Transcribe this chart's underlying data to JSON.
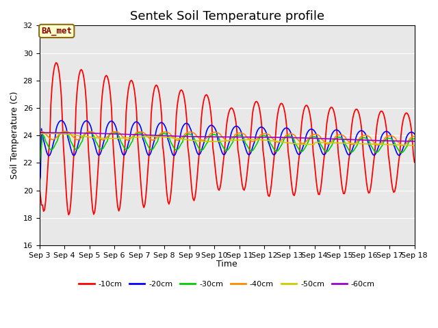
{
  "title": "Sentek Soil Temperature profile",
  "ylabel": "Soil Temperature (C)",
  "xlabel": "Time",
  "ylim": [
    16,
    32
  ],
  "xlim": [
    0,
    15
  ],
  "annotation": "BA_met",
  "legend_labels": [
    "-10cm",
    "-20cm",
    "-30cm",
    "-40cm",
    "-50cm",
    "-60cm"
  ],
  "legend_colors": [
    "#ff0000",
    "#0000ff",
    "#00cc00",
    "#ff8800",
    "#cccc00",
    "#9900cc"
  ],
  "xtick_labels": [
    "Sep 3",
    "Sep 4",
    "Sep 5",
    "Sep 6",
    "Sep 7",
    "Sep 8",
    "Sep 9",
    "Sep 10",
    "Sep 11",
    "Sep 12",
    "Sep 13",
    "Sep 14",
    "Sep 15",
    "Sep 16",
    "Sep 17",
    "Sep 18"
  ],
  "background_color": "#e8e8e8",
  "title_fontsize": 13,
  "axis_fontsize": 9,
  "tick_fontsize": 8
}
